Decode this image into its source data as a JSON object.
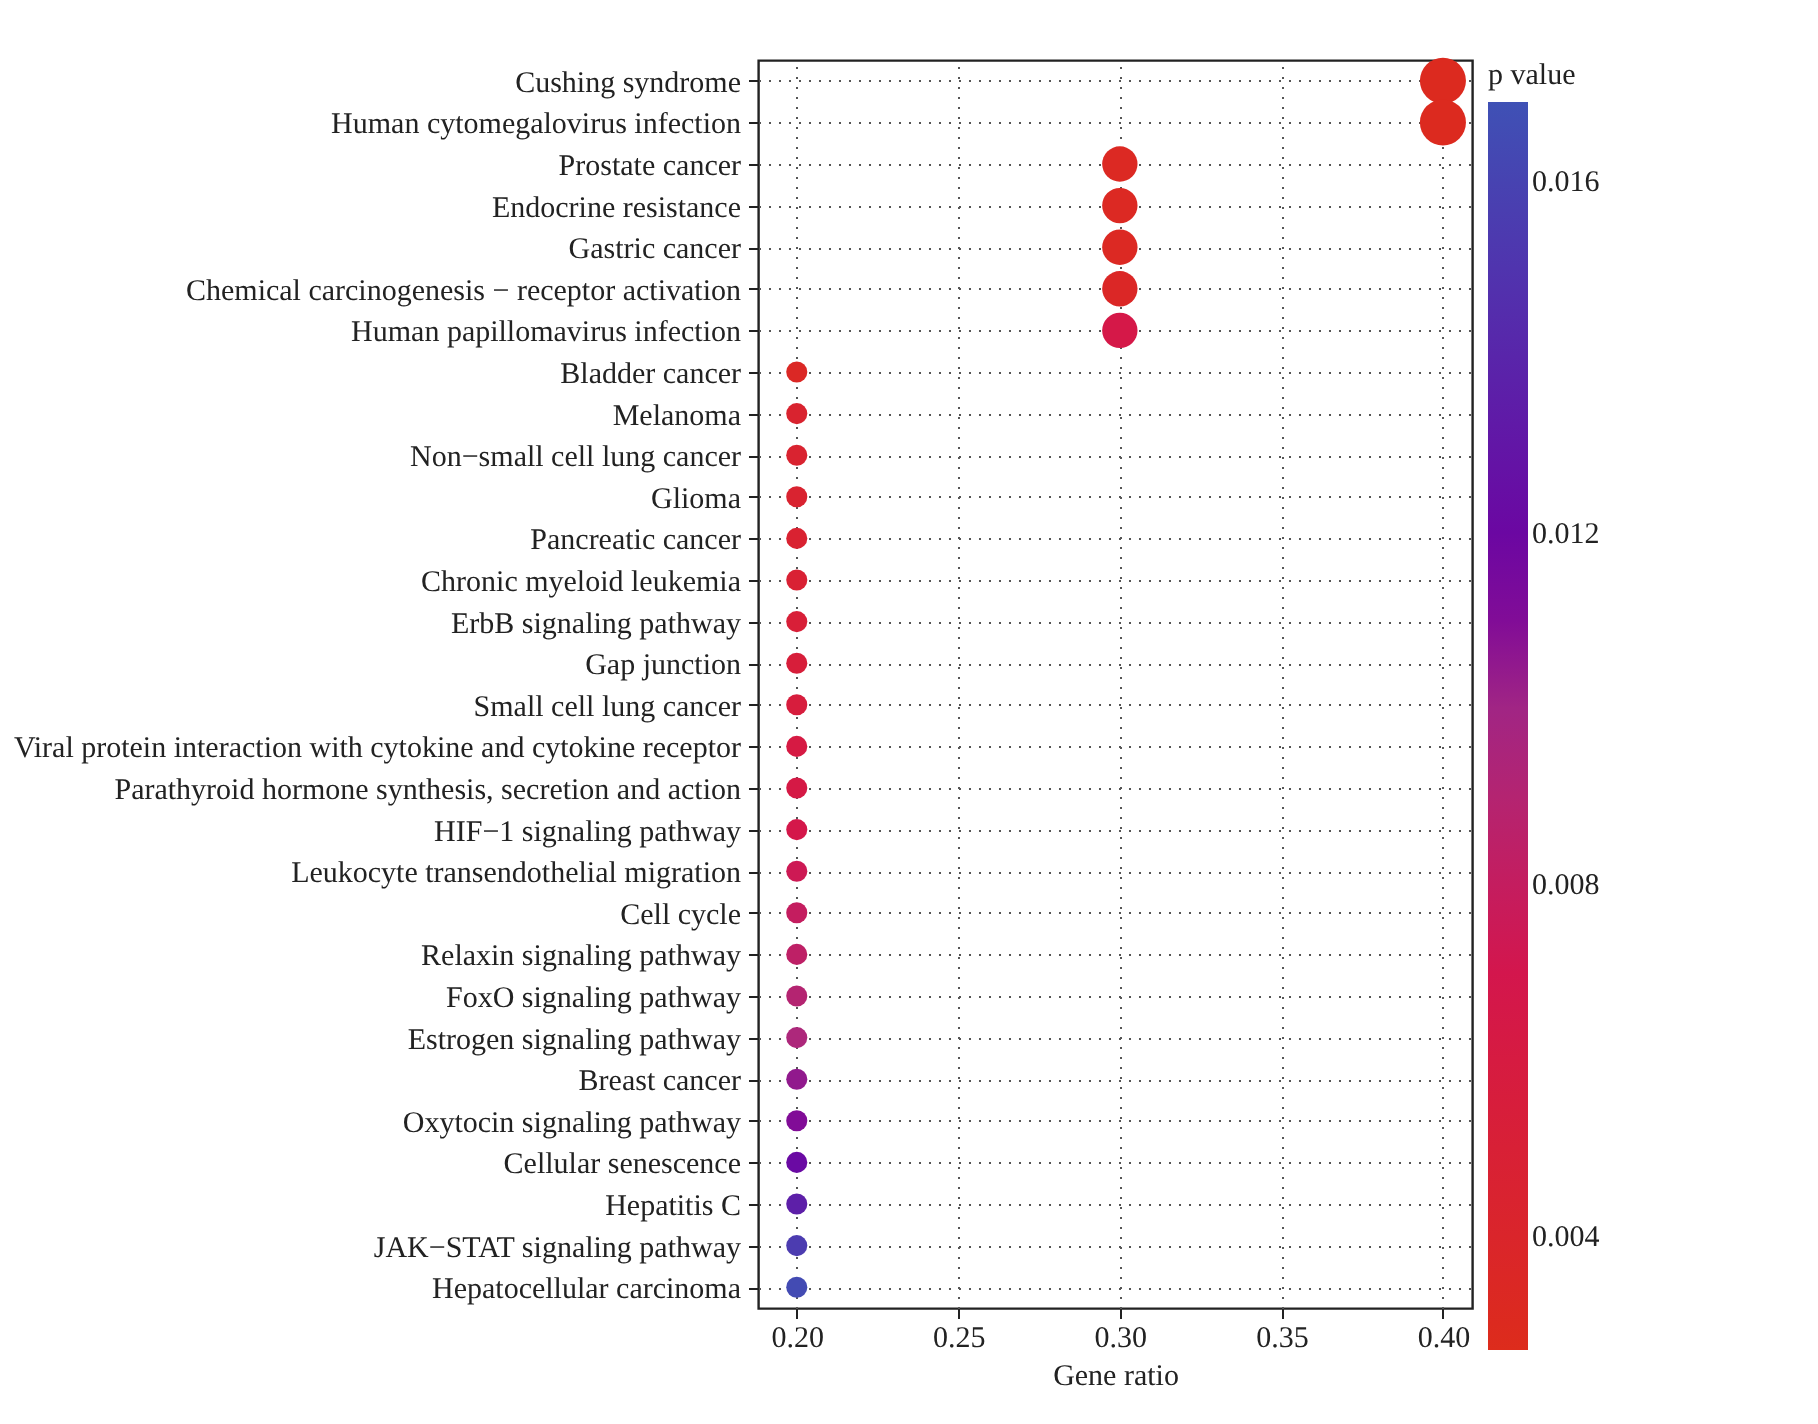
{
  "chart_data": {
    "type": "bubble",
    "orientation": "horizontal",
    "xlabel": "Gene ratio",
    "clabel": "p value",
    "categories": [
      "Cushing syndrome",
      "Human cytomegalovirus infection",
      "Prostate cancer",
      "Endocrine resistance",
      "Gastric cancer",
      "Chemical carcinogenesis − receptor activation",
      "Human papillomavirus infection",
      "Bladder cancer",
      "Melanoma",
      "Non−small cell lung cancer",
      "Glioma",
      "Pancreatic cancer",
      "Chronic myeloid leukemia",
      "ErbB signaling pathway",
      "Gap junction",
      "Small cell lung cancer",
      "Viral protein interaction with cytokine and cytokine receptor",
      "Parathyroid hormone synthesis, secretion and action",
      "HIF−1 signaling pathway",
      "Leukocyte transendothelial migration",
      "Cell cycle",
      "Relaxin signaling pathway",
      "FoxO signaling pathway",
      "Estrogen signaling pathway",
      "Breast cancer",
      "Oxytocin signaling pathway",
      "Cellular senescence",
      "Hepatitis C",
      "JAK−STAT signaling pathway",
      "Hepatocellular carcinoma"
    ],
    "values": [
      0.4,
      0.4,
      0.3,
      0.3,
      0.3,
      0.3,
      0.3,
      0.2,
      0.2,
      0.2,
      0.2,
      0.2,
      0.2,
      0.2,
      0.2,
      0.2,
      0.2,
      0.2,
      0.2,
      0.2,
      0.2,
      0.2,
      0.2,
      0.2,
      0.2,
      0.2,
      0.2,
      0.2,
      0.2,
      0.2
    ],
    "sizes": [
      1,
      1,
      0.59,
      0.59,
      0.59,
      0.59,
      0.59,
      0.21,
      0.21,
      0.21,
      0.21,
      0.21,
      0.21,
      0.21,
      0.21,
      0.21,
      0.21,
      0.21,
      0.21,
      0.21,
      0.21,
      0.21,
      0.21,
      0.21,
      0.21,
      0.21,
      0.21,
      0.21,
      0.21,
      0.21
    ],
    "cvalues": [
      0.003,
      0.003,
      0.0033,
      0.0033,
      0.0033,
      0.0036,
      0.0066,
      0.0035,
      0.0044,
      0.0045,
      0.0045,
      0.0046,
      0.0048,
      0.0052,
      0.0054,
      0.0056,
      0.0062,
      0.0063,
      0.0068,
      0.0074,
      0.008,
      0.0084,
      0.009,
      0.0095,
      0.0105,
      0.011,
      0.0122,
      0.0136,
      0.0155,
      0.0165
    ],
    "clim": [
      0.0027,
      0.0169
    ],
    "cticks": [
      {
        "value": 0.004,
        "label": "0.004"
      },
      {
        "value": 0.008,
        "label": "0.008"
      },
      {
        "value": 0.012,
        "label": "0.012"
      },
      {
        "value": 0.016,
        "label": "0.016"
      }
    ],
    "xlim": [
      0.188,
      0.409
    ],
    "xticks": [
      {
        "value": 0.2,
        "label": "0.20"
      },
      {
        "value": 0.25,
        "label": "0.25"
      },
      {
        "value": 0.3,
        "label": "0.30"
      },
      {
        "value": 0.35,
        "label": "0.35"
      },
      {
        "value": 0.4,
        "label": "0.40"
      }
    ],
    "grid": true
  }
}
